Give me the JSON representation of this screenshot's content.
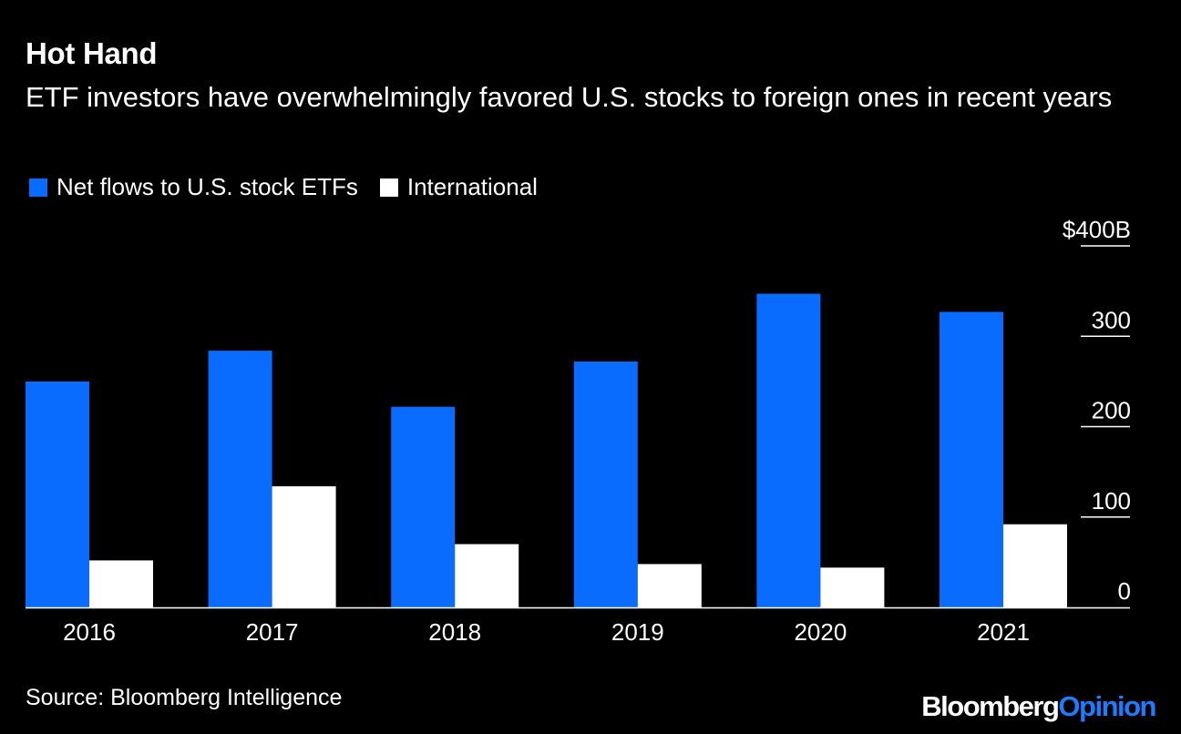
{
  "header": {
    "title": "Hot Hand",
    "subtitle": "ETF investors have overwhelmingly favored U.S. stocks to foreign ones in recent years"
  },
  "legend": {
    "us_label": "Net flows to U.S. stock ETFs",
    "intl_label": "International"
  },
  "footer": {
    "source": "Source: Bloomberg Intelligence",
    "brand_part1": "Bloomberg",
    "brand_part2": "Opinion"
  },
  "colors": {
    "us": "#0a6cff",
    "intl": "#ffffff",
    "background": "#000000",
    "brand_accent": "#1f7cff"
  },
  "chart_data": {
    "type": "bar",
    "title": "Hot Hand",
    "subtitle": "ETF investors have overwhelmingly favored U.S. stocks to foreign ones in recent years",
    "categories": [
      "2016",
      "2017",
      "2018",
      "2019",
      "2020",
      "2021"
    ],
    "series": [
      {
        "name": "Net flows to U.S. stock ETFs",
        "values": [
          250,
          284,
          222,
          272,
          347,
          327
        ]
      },
      {
        "name": "International",
        "values": [
          52,
          134,
          70,
          48,
          44,
          92
        ]
      }
    ],
    "yticks": [
      {
        "value": 0,
        "label": "0"
      },
      {
        "value": 100,
        "label": "100"
      },
      {
        "value": 200,
        "label": "200"
      },
      {
        "value": 300,
        "label": "300"
      },
      {
        "value": 400,
        "label": "$400B"
      }
    ],
    "ylim": [
      0,
      400
    ],
    "xlabel": "",
    "ylabel": "",
    "legend_position": "top-left",
    "grid": false
  }
}
